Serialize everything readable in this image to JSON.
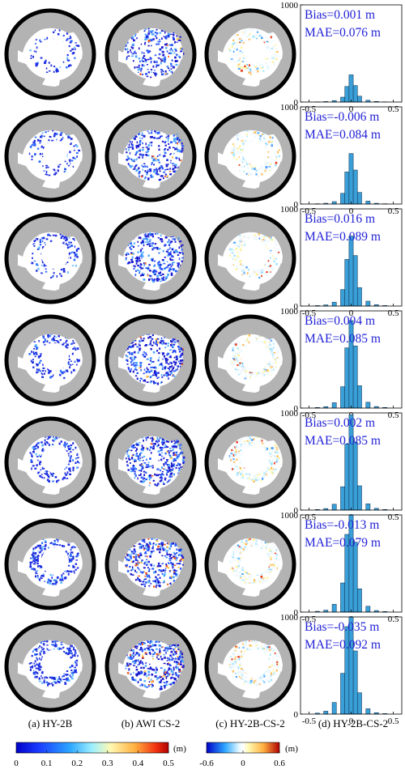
{
  "panel_labels": [
    "(a) HY-2B",
    "(b) AWI CS-2",
    "(c) HY-2B-CS-2",
    "(d) HY-2B-CS-2"
  ],
  "colorbars": [
    {
      "unit": "(m)",
      "ticks": [
        "0",
        "0.1",
        "0.2",
        "0.3",
        "0.4",
        "0.5"
      ],
      "colormap": "jet",
      "range": [
        0,
        0.5
      ]
    },
    {
      "unit": "(m)",
      "ticks": [
        "-0.6",
        "0",
        "0.6"
      ],
      "colormap": "jet-diverging",
      "range": [
        -0.6,
        0.6
      ]
    }
  ],
  "colors": {
    "land": "#b3b3b3",
    "histogram_bar": "#3a9fd6",
    "stats_text": "#1f1fd6",
    "map_border": "#000000"
  },
  "chart_data": [
    {
      "type": "bar",
      "row": 1,
      "bias": "Bias=0.001 m",
      "mae": "MAE=0.076 m",
      "x": [
        -0.5,
        -0.4,
        -0.3,
        -0.2,
        -0.1,
        -0.05,
        0,
        0.05,
        0.1,
        0.2,
        0.3,
        0.4,
        0.5
      ],
      "values": [
        0,
        2,
        5,
        15,
        50,
        160,
        280,
        170,
        60,
        18,
        6,
        2,
        0
      ],
      "xticks": [
        "-0.5",
        "0",
        "0.5"
      ],
      "yticks": [
        "0",
        "1000"
      ],
      "ylim": [
        0,
        1000
      ],
      "xlim": [
        -0.6,
        0.6
      ]
    },
    {
      "type": "bar",
      "row": 2,
      "bias": "Bias=-0.006 m",
      "mae": "MAE=0.084 m",
      "x": [
        -0.5,
        -0.4,
        -0.3,
        -0.2,
        -0.1,
        -0.05,
        0,
        0.05,
        0.1,
        0.2,
        0.3,
        0.4,
        0.5
      ],
      "values": [
        0,
        3,
        8,
        25,
        110,
        330,
        520,
        350,
        120,
        30,
        8,
        3,
        0
      ],
      "xticks": [
        "-0.5",
        "0",
        "0.5"
      ],
      "yticks": [
        "0",
        "1000"
      ],
      "ylim": [
        0,
        1000
      ],
      "xlim": [
        -0.6,
        0.6
      ]
    },
    {
      "type": "bar",
      "row": 3,
      "bias": "Bias=0.016 m",
      "mae": "MAE=0.089 m",
      "x": [
        -0.5,
        -0.4,
        -0.3,
        -0.2,
        -0.1,
        -0.05,
        0,
        0.05,
        0.1,
        0.2,
        0.3,
        0.4,
        0.5
      ],
      "values": [
        0,
        5,
        12,
        40,
        170,
        480,
        720,
        520,
        190,
        50,
        14,
        5,
        0
      ],
      "xticks": [
        "-0.5",
        "0",
        "0.5"
      ],
      "yticks": [
        "0",
        "1000"
      ],
      "ylim": [
        0,
        1000
      ],
      "xlim": [
        -0.6,
        0.6
      ]
    },
    {
      "type": "bar",
      "row": 4,
      "bias": "Bias=0.004 m",
      "mae": "MAE=0.085 m",
      "x": [
        -0.5,
        -0.4,
        -0.3,
        -0.2,
        -0.1,
        -0.05,
        0,
        0.05,
        0.1,
        0.2,
        0.3,
        0.4,
        0.5
      ],
      "values": [
        0,
        6,
        15,
        55,
        220,
        620,
        900,
        640,
        230,
        60,
        16,
        6,
        0
      ],
      "xticks": [
        "-0.5",
        "0",
        "0.5"
      ],
      "yticks": [
        "0",
        "1000"
      ],
      "ylim": [
        0,
        1000
      ],
      "xlim": [
        -0.6,
        0.6
      ]
    },
    {
      "type": "bar",
      "row": 5,
      "bias": "Bias=0.002 m",
      "mae": "MAE=0.085 m",
      "x": [
        -0.5,
        -0.4,
        -0.3,
        -0.2,
        -0.1,
        -0.05,
        0,
        0.05,
        0.1,
        0.2,
        0.3,
        0.4,
        0.5
      ],
      "values": [
        0,
        6,
        16,
        60,
        240,
        680,
        980,
        700,
        250,
        65,
        18,
        6,
        0
      ],
      "xticks": [
        "-0.5",
        "0",
        "0.5"
      ],
      "yticks": [
        "0",
        "1000"
      ],
      "ylim": [
        0,
        1000
      ],
      "xlim": [
        -0.6,
        0.6
      ]
    },
    {
      "type": "bar",
      "row": 6,
      "bias": "Bias=-0.013 m",
      "mae": "MAE=0.079 m",
      "x": [
        -0.5,
        -0.4,
        -0.3,
        -0.2,
        -0.1,
        -0.05,
        0,
        0.05,
        0.1,
        0.2,
        0.3,
        0.4,
        0.5
      ],
      "values": [
        0,
        8,
        20,
        80,
        300,
        800,
        1000,
        720,
        240,
        60,
        16,
        6,
        0
      ],
      "xticks": [
        "-0.5",
        "0",
        "0.5"
      ],
      "yticks": [
        "0",
        "1000"
      ],
      "ylim": [
        0,
        1000
      ],
      "xlim": [
        -0.6,
        0.6
      ]
    },
    {
      "type": "bar",
      "row": 7,
      "bias": "Bias=-0.035 m",
      "mae": "MAE=0.092 m",
      "x": [
        -0.5,
        -0.4,
        -0.3,
        -0.2,
        -0.1,
        -0.05,
        0,
        0.05,
        0.1,
        0.2,
        0.3,
        0.4,
        0.5
      ],
      "values": [
        0,
        10,
        30,
        120,
        420,
        900,
        1000,
        650,
        220,
        55,
        15,
        5,
        0
      ],
      "xticks": [
        "-0.5",
        "0",
        "0.5"
      ],
      "yticks": [
        "0",
        "1000"
      ],
      "ylim": [
        0,
        1000
      ],
      "xlim": [
        -0.6,
        0.6
      ]
    }
  ]
}
